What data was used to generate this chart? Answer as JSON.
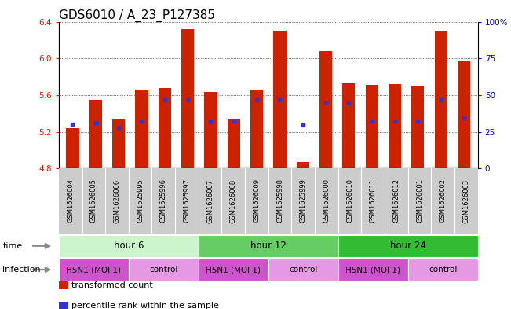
{
  "title": "GDS6010 / A_23_P127385",
  "samples": [
    "GSM1626004",
    "GSM1626005",
    "GSM1626006",
    "GSM1625995",
    "GSM1625996",
    "GSM1625997",
    "GSM1626007",
    "GSM1626008",
    "GSM1626009",
    "GSM1625998",
    "GSM1625999",
    "GSM1626000",
    "GSM1626010",
    "GSM1626011",
    "GSM1626012",
    "GSM1626001",
    "GSM1626002",
    "GSM1626003"
  ],
  "red_values": [
    5.24,
    5.55,
    5.34,
    5.66,
    5.68,
    6.32,
    5.63,
    5.34,
    5.66,
    6.3,
    4.87,
    6.08,
    5.73,
    5.71,
    5.72,
    5.7,
    6.29,
    5.97
  ],
  "blue_values": [
    5.28,
    5.3,
    5.25,
    5.32,
    5.55,
    5.55,
    5.31,
    5.32,
    5.55,
    5.55,
    5.27,
    5.52,
    5.52,
    5.32,
    5.32,
    5.32,
    5.55,
    5.35
  ],
  "ylim": [
    4.8,
    6.4
  ],
  "yticks_left": [
    4.8,
    5.2,
    5.6,
    6.0,
    6.4
  ],
  "yticks_right": [
    0,
    25,
    50,
    75,
    100
  ],
  "ytick_labels_right": [
    "0",
    "25",
    "50",
    "75",
    "100%"
  ],
  "time_groups": [
    {
      "label": "hour 6",
      "start": 0,
      "end": 6,
      "color": "#ccf5cc"
    },
    {
      "label": "hour 12",
      "start": 6,
      "end": 12,
      "color": "#66cc66"
    },
    {
      "label": "hour 24",
      "start": 12,
      "end": 18,
      "color": "#33bb33"
    }
  ],
  "infection_groups": [
    {
      "label": "H5N1 (MOI 1)",
      "start": 0,
      "end": 3,
      "color": "#cc55cc"
    },
    {
      "label": "control",
      "start": 3,
      "end": 6,
      "color": "#e599e5"
    },
    {
      "label": "H5N1 (MOI 1)",
      "start": 6,
      "end": 9,
      "color": "#cc55cc"
    },
    {
      "label": "control",
      "start": 9,
      "end": 12,
      "color": "#e599e5"
    },
    {
      "label": "H5N1 (MOI 1)",
      "start": 12,
      "end": 15,
      "color": "#cc55cc"
    },
    {
      "label": "control",
      "start": 15,
      "end": 18,
      "color": "#e599e5"
    }
  ],
  "legend_items": [
    {
      "label": "transformed count",
      "color": "#cc2200",
      "marker": "s"
    },
    {
      "label": "percentile rank within the sample",
      "color": "#3333cc",
      "marker": "s"
    }
  ],
  "bar_color": "#cc2200",
  "dot_color": "#3333cc",
  "bar_bottom": 4.8,
  "bar_width": 0.55,
  "label_color_left": "#cc2200",
  "label_color_right": "#0000cc",
  "title_fontsize": 11,
  "tick_fontsize": 7.5,
  "sample_bg": "#cccccc",
  "plot_bg": "#ffffff"
}
